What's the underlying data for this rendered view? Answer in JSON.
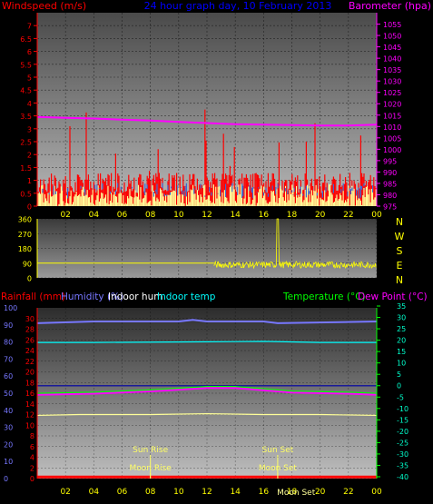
{
  "chart_data": [
    {
      "type": "line",
      "title": "24 hour graph day, 10 February 2013",
      "ylabel": "Windspeed (m/s)",
      "y2label": "Barometer (hpa)",
      "x_ticks": [
        "02",
        "04",
        "06",
        "08",
        "10",
        "12",
        "14",
        "16",
        "18",
        "20",
        "22",
        "00"
      ],
      "ylim": [
        0,
        7.5
      ],
      "y_ticks": [
        0,
        0.5,
        1,
        1.5,
        2,
        2.5,
        3,
        3.5,
        4,
        4.5,
        5,
        5.5,
        6,
        6.5,
        7
      ],
      "y2lim": [
        975,
        1060
      ],
      "y2_ticks": [
        975,
        980,
        985,
        990,
        995,
        1000,
        1005,
        1010,
        1015,
        1020,
        1025,
        1030,
        1035,
        1040,
        1045,
        1050,
        1055
      ],
      "series": [
        {
          "name": "Barometer",
          "axis": "right",
          "x": [
            0,
            2,
            4,
            6,
            8,
            10,
            12,
            14,
            16,
            18,
            20,
            22,
            24
          ],
          "values": [
            1014.2,
            1013.8,
            1013.5,
            1013.0,
            1012.6,
            1012.0,
            1011.5,
            1011.0,
            1010.8,
            1010.6,
            1010.4,
            1010.4,
            1010.8
          ]
        }
      ],
      "colors": {
        "wind": "#ff0000",
        "gust": "#ffff99",
        "barometer": "#ff00ff",
        "title": "#0000ff"
      }
    },
    {
      "type": "scatter",
      "ylabel_ticks": [
        0,
        90,
        180,
        270,
        360
      ],
      "compass": [
        "N",
        "W",
        "S",
        "E",
        "N"
      ],
      "x": [
        0,
        12.5,
        24
      ],
      "values": [
        90,
        90,
        90
      ],
      "colors": {
        "line": "#ffff00",
        "labels": "#ffff00"
      }
    },
    {
      "type": "line",
      "labels": {
        "rainfall": "Rainfall (mm)",
        "humidity": "Humidity (%)",
        "indoor_hum": "Indoor hum",
        "indoor_temp": "Indoor temp",
        "temperature": "Temperature (°C)",
        "dew_point": "Dew Point (°C)"
      },
      "left_ticks": [
        0,
        10,
        20,
        30,
        40,
        50,
        60,
        70,
        80,
        90,
        100
      ],
      "left2_ticks": [
        0,
        2,
        4,
        6,
        8,
        10,
        12,
        14,
        16,
        18,
        20,
        22,
        24,
        26,
        28,
        30
      ],
      "right_ticks": [
        35,
        30,
        25,
        20,
        15,
        10,
        5,
        0,
        -5,
        -10,
        -15,
        -20,
        -25,
        -30,
        -35,
        -40
      ],
      "x_ticks": [
        "02",
        "04",
        "06",
        "08",
        "10",
        "12",
        "14",
        "16",
        "18",
        "20",
        "22",
        "00"
      ],
      "annotations": {
        "sun_rise": "Sun Rise",
        "sun_set": "Sun Set",
        "moon_rise": "Moon Rise",
        "moon_set": "Moon Set",
        "moon_set2": "Moon Set"
      },
      "annotation_hours": {
        "sun_rise": 8.0,
        "sun_set": 17.0,
        "moon_rise": 8.0,
        "moon_set": 17.0,
        "moon_set2": 18.3
      },
      "series": [
        {
          "name": "Humidity (%)",
          "scale": "left",
          "x": [
            0,
            4,
            10,
            11,
            12,
            16,
            17,
            24
          ],
          "values": [
            91,
            92,
            92,
            93,
            92,
            92,
            91,
            92
          ]
        },
        {
          "name": "Indoor temp",
          "scale": "right",
          "x": [
            0,
            4,
            12,
            16,
            20,
            24
          ],
          "values": [
            19,
            19,
            19.3,
            19.5,
            19,
            19
          ]
        },
        {
          "name": "Temperature (°C)",
          "scale": "right",
          "x": [
            0,
            4,
            8,
            12,
            14,
            18,
            22,
            24
          ],
          "values": [
            -3.5,
            -3,
            -2,
            -0.5,
            -0.5,
            -2.5,
            -3,
            -3.5
          ]
        },
        {
          "name": "Dew Point (°C)",
          "scale": "right",
          "x": [
            0,
            4,
            8,
            12,
            14,
            18,
            22,
            24
          ],
          "values": [
            -4,
            -3.5,
            -2.5,
            -1,
            -1,
            -3,
            -3.5,
            -4
          ]
        },
        {
          "name": "Indoor hum",
          "scale": "left",
          "x": [
            0,
            3,
            8,
            12,
            16,
            20,
            24
          ],
          "values": [
            37,
            37.5,
            37.5,
            38,
            37.5,
            37.5,
            37
          ]
        },
        {
          "name": "Rainfall (mm)",
          "scale": "left2",
          "x": [
            0,
            24
          ],
          "values": [
            0.3,
            0.3
          ]
        }
      ],
      "reference_line": {
        "scale": "right",
        "value": 0
      },
      "colors": {
        "rainfall": "#ff0000",
        "humidity": "#7777ff",
        "indoor_hum": "#ffff99",
        "indoor_temp": "#00ffff",
        "temperature": "#00ff00",
        "dew_point": "#ff00ff",
        "ref": "#1a1a99",
        "sun": "#ffff66"
      }
    }
  ]
}
